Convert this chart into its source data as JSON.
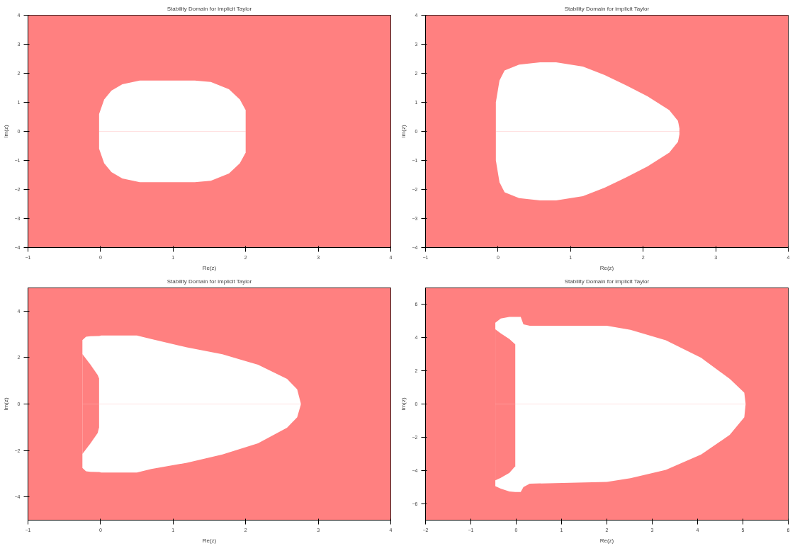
{
  "chart_data": [
    {
      "type": "area",
      "title": "Stability Domain for implicit Taylor",
      "xlabel": "Re(z)",
      "ylabel": "Im(z)",
      "xlim": [
        -1,
        4
      ],
      "ylim": [
        -4,
        4
      ],
      "xticks": [
        -1,
        0,
        1,
        2,
        3,
        4
      ],
      "yticks": [
        -4,
        -3,
        -2,
        -1,
        0,
        1,
        2,
        3,
        4
      ],
      "bands": [
        {
          "axis": "x",
          "from": -1,
          "to": 4,
          "color": "#ff8080"
        }
      ],
      "series": [
        {
          "color": "#ffffff",
          "x": [
            -0.02,
            0.05,
            0.15,
            0.3,
            0.54,
            1.0,
            1.3,
            1.52,
            1.77,
            1.92,
            2.0
          ],
          "values": [
            0.6,
            1.1,
            1.4,
            1.62,
            1.75,
            1.75,
            1.75,
            1.7,
            1.45,
            1.1,
            0.73
          ]
        },
        {
          "color": "#ffffff",
          "x": [
            -0.02,
            0.05,
            0.15,
            0.3,
            0.54,
            1.0,
            1.3,
            1.52,
            1.77,
            1.92,
            2.0
          ],
          "values": [
            -0.6,
            -1.1,
            -1.4,
            -1.62,
            -1.75,
            -1.75,
            -1.75,
            -1.7,
            -1.45,
            -1.1,
            -0.73
          ]
        }
      ]
    },
    {
      "type": "area",
      "title": "Stability Domain for implicit Taylor",
      "xlabel": "Re(z)",
      "ylabel": "Im(z)",
      "xlim": [
        -1,
        4
      ],
      "ylim": [
        -4,
        4
      ],
      "xticks": [
        -1,
        0,
        1,
        2,
        3,
        4
      ],
      "yticks": [
        -4,
        -3,
        -2,
        -1,
        0,
        1,
        2,
        3,
        4
      ],
      "bands": [
        {
          "axis": "x",
          "from": -1,
          "to": 4,
          "color": "#ff8080"
        }
      ],
      "series": [
        {
          "color": "#ffffff",
          "x": [
            -0.03,
            0.02,
            0.09,
            0.29,
            0.58,
            0.8,
            1.17,
            1.47,
            1.77,
            2.06,
            2.36,
            2.48,
            2.5
          ],
          "values": [
            1.0,
            1.75,
            2.1,
            2.3,
            2.38,
            2.38,
            2.23,
            1.94,
            1.58,
            1.21,
            0.73,
            0.36,
            0.1
          ]
        },
        {
          "color": "#ffffff",
          "x": [
            -0.03,
            0.02,
            0.09,
            0.29,
            0.58,
            0.8,
            1.17,
            1.47,
            1.77,
            2.06,
            2.36,
            2.48,
            2.5
          ],
          "values": [
            -1.0,
            -1.75,
            -2.1,
            -2.3,
            -2.38,
            -2.38,
            -2.23,
            -1.94,
            -1.58,
            -1.21,
            -0.73,
            -0.36,
            -0.1
          ]
        }
      ]
    },
    {
      "type": "area",
      "title": "Stability Domain for implicit Taylor",
      "xlabel": "Re(z)",
      "ylabel": "Im(z)",
      "xlim": [
        -1,
        4
      ],
      "ylim": [
        -5,
        5
      ],
      "xticks": [
        -1,
        0,
        1,
        2,
        3,
        4
      ],
      "yticks": [
        -4,
        -2,
        0,
        2,
        4
      ],
      "bands": [
        {
          "axis": "x",
          "from": -1,
          "to": 4,
          "color": "#ff8080"
        }
      ],
      "series": [
        {
          "color": "#ffffff",
          "x": [
            -0.25,
            -0.2,
            -0.14,
            -0.04,
            -0.02,
            0.01,
            0.5,
            0.7,
            1.19,
            1.68,
            2.17,
            2.57,
            2.71,
            2.76
          ],
          "values": [
            2.75,
            2.9,
            2.92,
            2.93,
            2.93,
            2.95,
            2.95,
            2.8,
            2.44,
            2.14,
            1.69,
            1.08,
            0.63,
            0.03
          ]
        },
        {
          "color": "#ffffff",
          "x": [
            -0.25,
            -0.2,
            -0.14,
            -0.04,
            -0.02,
            0.01,
            0.5,
            0.7,
            1.19,
            1.68,
            2.17,
            2.57,
            2.71,
            2.76
          ],
          "values": [
            -2.75,
            -2.9,
            -2.92,
            -2.93,
            -2.93,
            -2.95,
            -2.95,
            -2.8,
            -2.53,
            -2.17,
            -1.69,
            -1.02,
            -0.57,
            -0.03
          ]
        },
        {
          "color": "#ff8080",
          "x": [
            -0.25,
            -0.14,
            -0.04,
            -0.02
          ],
          "values": [
            2.15,
            1.7,
            1.25,
            1.1
          ]
        },
        {
          "color": "#ff8080",
          "x": [
            -0.25,
            -0.14,
            -0.04,
            -0.02
          ],
          "values": [
            -2.15,
            -1.7,
            -1.25,
            -1.0
          ]
        }
      ]
    },
    {
      "type": "area",
      "title": "Stability Domain for implicit Taylor",
      "xlabel": "Re(z)",
      "ylabel": "Im(z)",
      "xlim": [
        -2,
        6
      ],
      "ylim": [
        -7,
        7
      ],
      "xticks": [
        -2,
        -1,
        0,
        1,
        2,
        3,
        4,
        5,
        6
      ],
      "yticks": [
        -6,
        -4,
        -2,
        0,
        2,
        4,
        6
      ],
      "bands": [
        {
          "axis": "x",
          "from": -2,
          "to": 6,
          "color": "#ff8080"
        }
      ],
      "series": [
        {
          "color": "#ffffff",
          "x": [
            -0.46,
            -0.34,
            -0.15,
            -0.02,
            0.1,
            0.16,
            0.3,
            2.0,
            2.52,
            3.3,
            4.08,
            4.71,
            5.03,
            5.06
          ],
          "values": [
            4.9,
            5.15,
            5.25,
            5.25,
            5.25,
            4.8,
            4.72,
            4.72,
            4.47,
            3.84,
            2.78,
            1.52,
            0.68,
            0
          ]
        },
        {
          "color": "#ffffff",
          "x": [
            -0.46,
            -0.34,
            -0.15,
            -0.02,
            0.1,
            0.16,
            0.3,
            2.0,
            2.52,
            3.3,
            4.08,
            4.71,
            5.03,
            5.06
          ],
          "values": [
            -4.95,
            -5.1,
            -5.27,
            -5.3,
            -5.3,
            -5.0,
            -4.8,
            -4.7,
            -4.47,
            -3.97,
            -3.04,
            -1.86,
            -0.8,
            0
          ]
        },
        {
          "color": "#ff8080",
          "x": [
            -0.46,
            -0.34,
            -0.15,
            -0.02
          ],
          "values": [
            4.5,
            4.26,
            3.92,
            3.6
          ]
        },
        {
          "color": "#ff8080",
          "x": [
            -0.46,
            -0.34,
            -0.15,
            -0.02
          ],
          "values": [
            -4.6,
            -4.45,
            -4.15,
            -3.75
          ]
        }
      ]
    }
  ]
}
